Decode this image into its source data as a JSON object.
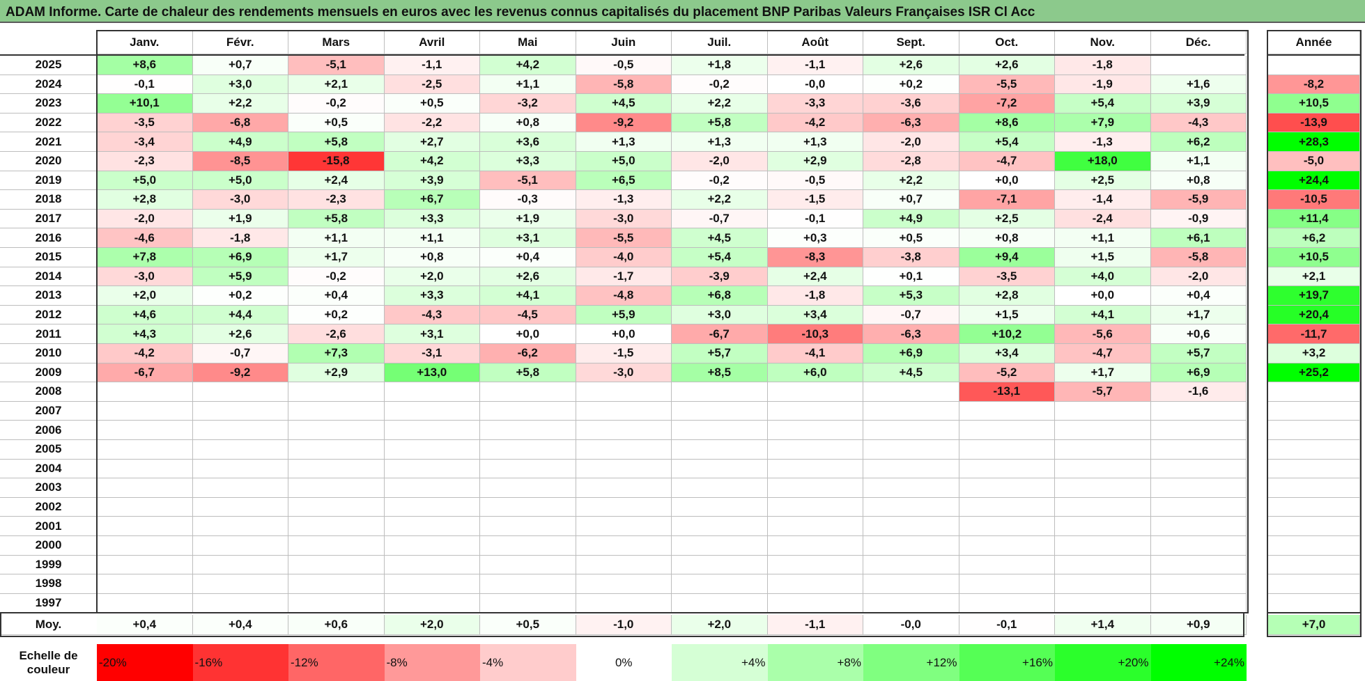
{
  "title": "ADAM Informe. Carte de chaleur des rendements mensuels en euros avec les revenus connus capitalisés du placement BNP Paribas Valeurs Françaises ISR Cl Acc",
  "chart_data": {
    "type": "heatmap",
    "months": [
      "Janv.",
      "Févr.",
      "Mars",
      "Avril",
      "Mai",
      "Juin",
      "Juil.",
      "Août",
      "Sept.",
      "Oct.",
      "Nov.",
      "Déc."
    ],
    "year_col_label": "Année",
    "avg_label": "Moy.",
    "scale_label": "Echelle de couleur",
    "rows": [
      {
        "year": "2025",
        "values": [
          "+8,6",
          "+0,7",
          "-5,1",
          "-1,1",
          "+4,2",
          "-0,5",
          "+1,8",
          "-1,1",
          "+2,6",
          "+2,6",
          "-1,8",
          ""
        ],
        "annual": ""
      },
      {
        "year": "2024",
        "values": [
          "-0,1",
          "+3,0",
          "+2,1",
          "-2,5",
          "+1,1",
          "-5,8",
          "-0,2",
          "-0,0",
          "+0,2",
          "-5,5",
          "-1,9",
          "+1,6"
        ],
        "annual": "-8,2"
      },
      {
        "year": "2023",
        "values": [
          "+10,1",
          "+2,2",
          "-0,2",
          "+0,5",
          "-3,2",
          "+4,5",
          "+2,2",
          "-3,3",
          "-3,6",
          "-7,2",
          "+5,4",
          "+3,9"
        ],
        "annual": "+10,5"
      },
      {
        "year": "2022",
        "values": [
          "-3,5",
          "-6,8",
          "+0,5",
          "-2,2",
          "+0,8",
          "-9,2",
          "+5,8",
          "-4,2",
          "-6,3",
          "+8,6",
          "+7,9",
          "-4,3"
        ],
        "annual": "-13,9"
      },
      {
        "year": "2021",
        "values": [
          "-3,4",
          "+4,9",
          "+5,8",
          "+2,7",
          "+3,6",
          "+1,3",
          "+1,3",
          "+1,3",
          "-2,0",
          "+5,4",
          "-1,3",
          "+6,2"
        ],
        "annual": "+28,3"
      },
      {
        "year": "2020",
        "values": [
          "-2,3",
          "-8,5",
          "-15,8",
          "+4,2",
          "+3,3",
          "+5,0",
          "-2,0",
          "+2,9",
          "-2,8",
          "-4,7",
          "+18,0",
          "+1,1"
        ],
        "annual": "-5,0"
      },
      {
        "year": "2019",
        "values": [
          "+5,0",
          "+5,0",
          "+2,4",
          "+3,9",
          "-5,1",
          "+6,5",
          "-0,2",
          "-0,5",
          "+2,2",
          "+0,0",
          "+2,5",
          "+0,8"
        ],
        "annual": "+24,4"
      },
      {
        "year": "2018",
        "values": [
          "+2,8",
          "-3,0",
          "-2,3",
          "+6,7",
          "-0,3",
          "-1,3",
          "+2,2",
          "-1,5",
          "+0,7",
          "-7,1",
          "-1,4",
          "-5,9"
        ],
        "annual": "-10,5"
      },
      {
        "year": "2017",
        "values": [
          "-2,0",
          "+1,9",
          "+5,8",
          "+3,3",
          "+1,9",
          "-3,0",
          "-0,7",
          "-0,1",
          "+4,9",
          "+2,5",
          "-2,4",
          "-0,9"
        ],
        "annual": "+11,4"
      },
      {
        "year": "2016",
        "values": [
          "-4,6",
          "-1,8",
          "+1,1",
          "+1,1",
          "+3,1",
          "-5,5",
          "+4,5",
          "+0,3",
          "+0,5",
          "+0,8",
          "+1,1",
          "+6,1"
        ],
        "annual": "+6,2"
      },
      {
        "year": "2015",
        "values": [
          "+7,8",
          "+6,9",
          "+1,7",
          "+0,8",
          "+0,4",
          "-4,0",
          "+5,4",
          "-8,3",
          "-3,8",
          "+9,4",
          "+1,5",
          "-5,8"
        ],
        "annual": "+10,5"
      },
      {
        "year": "2014",
        "values": [
          "-3,0",
          "+5,9",
          "-0,2",
          "+2,0",
          "+2,6",
          "-1,7",
          "-3,9",
          "+2,4",
          "+0,1",
          "-3,5",
          "+4,0",
          "-2,0"
        ],
        "annual": "+2,1"
      },
      {
        "year": "2013",
        "values": [
          "+2,0",
          "+0,2",
          "+0,4",
          "+3,3",
          "+4,1",
          "-4,8",
          "+6,8",
          "-1,8",
          "+5,3",
          "+2,8",
          "+0,0",
          "+0,4"
        ],
        "annual": "+19,7"
      },
      {
        "year": "2012",
        "values": [
          "+4,6",
          "+4,4",
          "+0,2",
          "-4,3",
          "-4,5",
          "+5,9",
          "+3,0",
          "+3,4",
          "-0,7",
          "+1,5",
          "+4,1",
          "+1,7"
        ],
        "annual": "+20,4"
      },
      {
        "year": "2011",
        "values": [
          "+4,3",
          "+2,6",
          "-2,6",
          "+3,1",
          "+0,0",
          "+0,0",
          "-6,7",
          "-10,3",
          "-6,3",
          "+10,2",
          "-5,6",
          "+0,6"
        ],
        "annual": "-11,7"
      },
      {
        "year": "2010",
        "values": [
          "-4,2",
          "-0,7",
          "+7,3",
          "-3,1",
          "-6,2",
          "-1,5",
          "+5,7",
          "-4,1",
          "+6,9",
          "+3,4",
          "-4,7",
          "+5,7"
        ],
        "annual": "+3,2"
      },
      {
        "year": "2009",
        "values": [
          "-6,7",
          "-9,2",
          "+2,9",
          "+13,0",
          "+5,8",
          "-3,0",
          "+8,5",
          "+6,0",
          "+4,5",
          "-5,2",
          "+1,7",
          "+6,9"
        ],
        "annual": "+25,2"
      },
      {
        "year": "2008",
        "values": [
          "",
          "",
          "",
          "",
          "",
          "",
          "",
          "",
          "",
          "-13,1",
          "-5,7",
          "-1,6"
        ],
        "annual": ""
      },
      {
        "year": "2007",
        "values": [
          "",
          "",
          "",
          "",
          "",
          "",
          "",
          "",
          "",
          "",
          "",
          ""
        ],
        "annual": ""
      },
      {
        "year": "2006",
        "values": [
          "",
          "",
          "",
          "",
          "",
          "",
          "",
          "",
          "",
          "",
          "",
          ""
        ],
        "annual": ""
      },
      {
        "year": "2005",
        "values": [
          "",
          "",
          "",
          "",
          "",
          "",
          "",
          "",
          "",
          "",
          "",
          ""
        ],
        "annual": ""
      },
      {
        "year": "2004",
        "values": [
          "",
          "",
          "",
          "",
          "",
          "",
          "",
          "",
          "",
          "",
          "",
          ""
        ],
        "annual": ""
      },
      {
        "year": "2003",
        "values": [
          "",
          "",
          "",
          "",
          "",
          "",
          "",
          "",
          "",
          "",
          "",
          ""
        ],
        "annual": ""
      },
      {
        "year": "2002",
        "values": [
          "",
          "",
          "",
          "",
          "",
          "",
          "",
          "",
          "",
          "",
          "",
          ""
        ],
        "annual": ""
      },
      {
        "year": "2001",
        "values": [
          "",
          "",
          "",
          "",
          "",
          "",
          "",
          "",
          "",
          "",
          "",
          ""
        ],
        "annual": ""
      },
      {
        "year": "2000",
        "values": [
          "",
          "",
          "",
          "",
          "",
          "",
          "",
          "",
          "",
          "",
          "",
          ""
        ],
        "annual": ""
      },
      {
        "year": "1999",
        "values": [
          "",
          "",
          "",
          "",
          "",
          "",
          "",
          "",
          "",
          "",
          "",
          ""
        ],
        "annual": ""
      },
      {
        "year": "1998",
        "values": [
          "",
          "",
          "",
          "",
          "",
          "",
          "",
          "",
          "",
          "",
          "",
          ""
        ],
        "annual": ""
      },
      {
        "year": "1997",
        "values": [
          "",
          "",
          "",
          "",
          "",
          "",
          "",
          "",
          "",
          "",
          "",
          ""
        ],
        "annual": ""
      }
    ],
    "averages": [
      "+0,4",
      "+0,4",
      "+0,6",
      "+2,0",
      "+0,5",
      "-1,0",
      "+2,0",
      "-1,1",
      "-0,0",
      "-0,1",
      "+1,4",
      "+0,9"
    ],
    "average_annual": "+7,0",
    "color_scale": [
      "-20%",
      "-16%",
      "-12%",
      "-8%",
      "-4%",
      "0%",
      "+4%",
      "+8%",
      "+12%",
      "+16%",
      "+20%",
      "+24%"
    ],
    "color_scale_values": [
      -20,
      -16,
      -12,
      -8,
      -4,
      0,
      4,
      8,
      12,
      16,
      20,
      24
    ]
  }
}
